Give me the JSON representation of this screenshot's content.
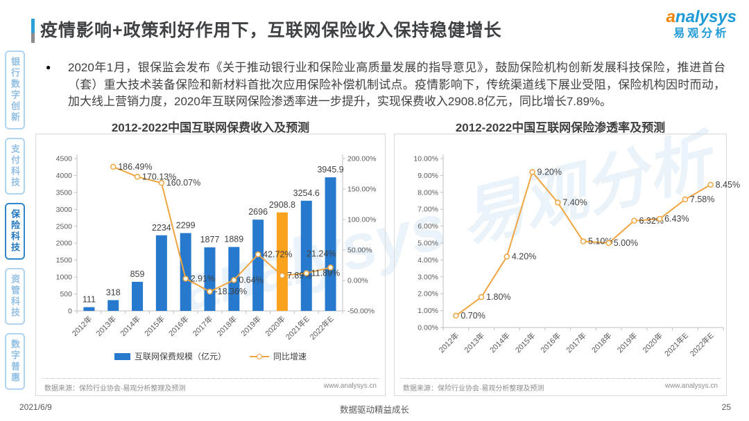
{
  "header": {
    "title": "疫情影响+政策利好作用下，互联网保险收入保持稳健增长",
    "logo": {
      "brand": "analysys",
      "brand_cn": "易观分析"
    }
  },
  "sidebar": {
    "items": [
      {
        "label": "银行数字创新",
        "active": false
      },
      {
        "label": "支付科技",
        "active": false
      },
      {
        "label": "保险科技",
        "active": true
      },
      {
        "label": "资管科技",
        "active": false
      },
      {
        "label": "数字普惠",
        "active": false
      }
    ]
  },
  "body": {
    "bullet": "●",
    "paragraph": "2020年1月，银保监会发布《关于推动银行业和保险业高质量发展的指导意见》，鼓励保险机构创新发展科技保险，推进首台（套）重大技术装备保险和新材料首批次应用保险补偿机制试点。疫情影响下，传统渠道线下展业受阻，保险机构因时而动，加大线上营销力度，2020年互联网保险渗透率进一步提升，实现保费收入2908.8亿元，同比增长7.89%。"
  },
  "watermark": "analysys 易观分析",
  "colors": {
    "bar_blue": "#2679CD",
    "bar_highlight_orange": "#FAA21D",
    "line_orange": "#F0A43F",
    "logo_blue": "#1E9AD6",
    "logo_orange": "#F08300",
    "axis_gray": "#BFBFBF"
  },
  "chart_data": [
    {
      "type": "bar",
      "title": "2012-2022中国互联网保费收入及预测",
      "categories": [
        "2012年",
        "2013年",
        "2014年",
        "2015年",
        "2016年",
        "2017年",
        "2018年",
        "2019年",
        "2020年",
        "2021年E",
        "2022年E"
      ],
      "bar_series": {
        "name": "互联网保费规模（亿元）",
        "values": [
          111,
          318,
          859,
          2234,
          2299,
          1877,
          1889,
          2696,
          2908.8,
          3254.6,
          3945.9
        ],
        "labels": [
          "111",
          "318",
          "859",
          "2234",
          "2299",
          "1877",
          "1889",
          "2696",
          "2908.8",
          "3254.6",
          "3945.9"
        ],
        "color": "#2679CD",
        "highlight_index": 8,
        "highlight_color": "#FAA21D"
      },
      "line_series": {
        "name": "同比增速",
        "values": [
          null,
          186.49,
          170.13,
          160.07,
          2.91,
          -18.36,
          0.64,
          42.72,
          7.89,
          11.89,
          21.24
        ],
        "labels": [
          "",
          "186.49%",
          "170.13%",
          "160.07%",
          "2.91%",
          "-18.36%",
          "0.64%",
          "42.72%",
          "7.89%",
          "11.89%",
          "21.24%"
        ],
        "color": "#F0A43F"
      },
      "left_axis": {
        "min": 0,
        "max": 4500,
        "step": 500
      },
      "right_axis": {
        "min": -50,
        "max": 200,
        "step": 50,
        "format": "percent2"
      },
      "legend_position": "bottom",
      "grid": false,
      "source": "数据来源：保险行业协会·易观分析整理及预测",
      "site": "www.analysys.cn"
    },
    {
      "type": "line",
      "title": "2012-2022中国互联网保险渗透率及预测",
      "categories": [
        "2012年",
        "2013年",
        "2014年",
        "2015年",
        "2016年",
        "2017年",
        "2018年",
        "2019年",
        "2020年",
        "2021年E",
        "2022年E"
      ],
      "line_series": {
        "name": "互联网保险渗透率",
        "values": [
          0.7,
          1.8,
          4.2,
          9.2,
          7.4,
          5.1,
          5.0,
          6.32,
          6.43,
          7.58,
          8.45
        ],
        "labels": [
          "0.70%",
          "1.80%",
          "4.20%",
          "9.20%",
          "7.40%",
          "5.10%",
          "5.00%",
          "6.32%",
          "6.43%",
          "7.58%",
          "8.45%"
        ],
        "color": "#F0A43F"
      },
      "y_axis": {
        "min": 0,
        "max": 10,
        "step": 1,
        "format": "percent2"
      },
      "grid": false,
      "source": "数据来源：保险行业协会·易观分析整理及预测",
      "site": "www.analysys.cn"
    }
  ],
  "footer": {
    "date": "2021/6/9",
    "slogan": "数据驱动精益成长",
    "page": "25"
  }
}
